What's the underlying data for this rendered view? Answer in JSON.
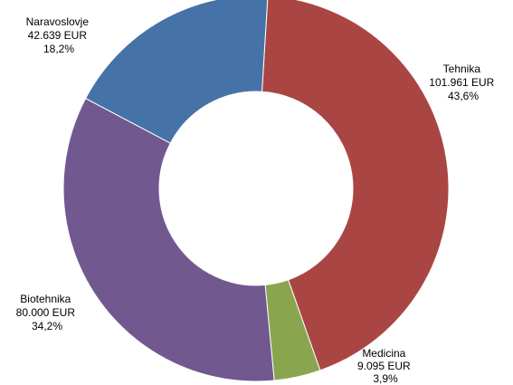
{
  "chart_data": {
    "type": "pie",
    "variant": "donut",
    "title": "",
    "slices": [
      {
        "name": "Tehnika",
        "amount": "101.961 EUR",
        "percent": "43,6%",
        "value": 101961,
        "color": "#A94643"
      },
      {
        "name": "Medicina",
        "amount": "9.095 EUR",
        "percent": "3,9%",
        "value": 9095,
        "color": "#89A54E"
      },
      {
        "name": "Biotehnika",
        "amount": "80.000 EUR",
        "percent": "34,2%",
        "value": 80000,
        "color": "#71588F"
      },
      {
        "name": "Naravoslovje",
        "amount": "42.639 EUR",
        "percent": "18,2%",
        "value": 42639,
        "color": "#4572A7"
      }
    ],
    "start_at": "top, slightly right of center",
    "direction": "clockwise",
    "legend": "none (labels beside slices)"
  }
}
